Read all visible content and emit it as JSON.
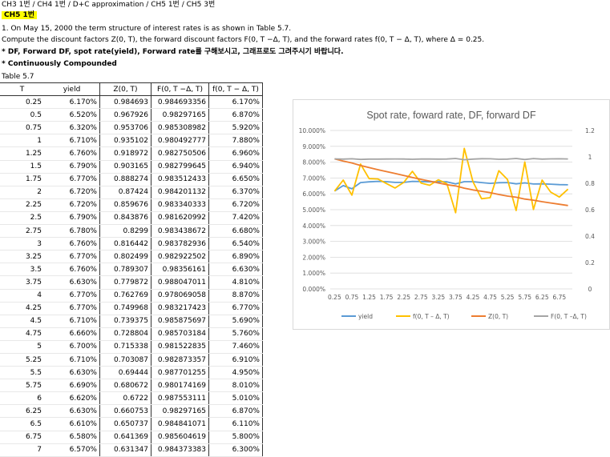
{
  "breadcrumb": "CH3 1번 / CH4 1번 / D+C approximation / CH5 1번 / CH5 3번",
  "section_label": "CH5 1번",
  "problem_line1": "1. On May 15, 2000 the term structure of interest rates is as shown in Table 5.7.",
  "problem_line2": "Compute the discount factors Z(0, T), the forward discount factors F(0, T −Δ, T), and the forward rates f(0, T − Δ, T), where Δ = 0.25.",
  "note1": "* DF, Forward DF, spot rate(yield), Forward rate를 구해보시고, 그래프로도 그려주시기 바랍니다.",
  "note2": "* Continuously Compounded",
  "table_title": "Table 5.7",
  "table": {
    "headers": [
      "T",
      "yield",
      "Z(0, T)",
      "F(0, T −Δ, T)",
      "f(0, T − Δ, T)"
    ],
    "rows": [
      [
        "0.25",
        "6.170%",
        "0.984693",
        "0.984693356",
        "6.170%"
      ],
      [
        "0.5",
        "6.520%",
        "0.967926",
        "0.98297165",
        "6.870%"
      ],
      [
        "0.75",
        "6.320%",
        "0.953706",
        "0.985308982",
        "5.920%"
      ],
      [
        "1",
        "6.710%",
        "0.935102",
        "0.980492777",
        "7.880%"
      ],
      [
        "1.25",
        "6.760%",
        "0.918972",
        "0.982750506",
        "6.960%"
      ],
      [
        "1.5",
        "6.790%",
        "0.903165",
        "0.982799645",
        "6.940%"
      ],
      [
        "1.75",
        "6.770%",
        "0.888274",
        "0.983512433",
        "6.650%"
      ],
      [
        "2",
        "6.720%",
        "0.87424",
        "0.984201132",
        "6.370%"
      ],
      [
        "2.25",
        "6.720%",
        "0.859676",
        "0.983340333",
        "6.720%"
      ],
      [
        "2.5",
        "6.790%",
        "0.843876",
        "0.981620992",
        "7.420%"
      ],
      [
        "2.75",
        "6.780%",
        "0.8299",
        "0.983438672",
        "6.680%"
      ],
      [
        "3",
        "6.760%",
        "0.816442",
        "0.983782936",
        "6.540%"
      ],
      [
        "3.25",
        "6.770%",
        "0.802499",
        "0.982922502",
        "6.890%"
      ],
      [
        "3.5",
        "6.760%",
        "0.789307",
        "0.98356161",
        "6.630%"
      ],
      [
        "3.75",
        "6.630%",
        "0.779872",
        "0.988047011",
        "4.810%"
      ],
      [
        "4",
        "6.770%",
        "0.762769",
        "0.978069058",
        "8.870%"
      ],
      [
        "4.25",
        "6.770%",
        "0.749968",
        "0.983217423",
        "6.770%"
      ],
      [
        "4.5",
        "6.710%",
        "0.739375",
        "0.985875697",
        "5.690%"
      ],
      [
        "4.75",
        "6.660%",
        "0.728804",
        "0.985703184",
        "5.760%"
      ],
      [
        "5",
        "6.700%",
        "0.715338",
        "0.981522835",
        "7.460%"
      ],
      [
        "5.25",
        "6.710%",
        "0.703087",
        "0.982873357",
        "6.910%"
      ],
      [
        "5.5",
        "6.630%",
        "0.69444",
        "0.987701255",
        "4.950%"
      ],
      [
        "5.75",
        "6.690%",
        "0.680672",
        "0.980174169",
        "8.010%"
      ],
      [
        "6",
        "6.620%",
        "0.6722",
        "0.987553111",
        "5.010%"
      ],
      [
        "6.25",
        "6.630%",
        "0.660753",
        "0.98297165",
        "6.870%"
      ],
      [
        "6.5",
        "6.610%",
        "0.650737",
        "0.984841071",
        "6.110%"
      ],
      [
        "6.75",
        "6.580%",
        "0.641369",
        "0.985604619",
        "5.800%"
      ],
      [
        "7",
        "6.570%",
        "0.631347",
        "0.984373383",
        "6.300%"
      ]
    ]
  },
  "chart_data": {
    "type": "line",
    "title": "Spot rate, foward rate, DF, forward DF",
    "categories": [
      "0.25",
      "0.5",
      "0.75",
      "1",
      "1.25",
      "1.5",
      "1.75",
      "2",
      "2.25",
      "2.5",
      "2.75",
      "3",
      "3.25",
      "3.5",
      "3.75",
      "4",
      "4.25",
      "4.5",
      "4.75",
      "5",
      "5.25",
      "5.5",
      "5.75",
      "6",
      "6.25",
      "6.5",
      "6.75",
      "7"
    ],
    "x_tick_labels": [
      "0.25",
      "0.75",
      "1.25",
      "1.75",
      "2.25",
      "2.75",
      "3.25",
      "3.75",
      "4.25",
      "4.75",
      "5.25",
      "5.75",
      "6.25",
      "6.75"
    ],
    "left_axis": {
      "min": 0,
      "max": 0.1,
      "ticks": [
        "0.000%",
        "1.000%",
        "2.000%",
        "3.000%",
        "4.000%",
        "5.000%",
        "6.000%",
        "7.000%",
        "8.000%",
        "9.000%",
        "10.000%"
      ]
    },
    "right_axis": {
      "min": 0,
      "max": 1.2,
      "ticks": [
        "0",
        "0.2",
        "0.4",
        "0.6",
        "0.8",
        "1",
        "1.2"
      ]
    },
    "series": [
      {
        "name": "yield",
        "axis": "left",
        "color": "#5b9bd5",
        "values": [
          0.0617,
          0.0652,
          0.0632,
          0.0671,
          0.0676,
          0.0679,
          0.0677,
          0.0672,
          0.0672,
          0.0679,
          0.0678,
          0.0676,
          0.0677,
          0.0676,
          0.0663,
          0.0677,
          0.0677,
          0.0671,
          0.0666,
          0.067,
          0.0671,
          0.0663,
          0.0669,
          0.0662,
          0.0663,
          0.0661,
          0.0658,
          0.0657
        ]
      },
      {
        "name": "f(0, T – Δ, T)",
        "axis": "left",
        "color": "#ffc000",
        "values": [
          0.0617,
          0.0687,
          0.0592,
          0.0788,
          0.0696,
          0.0694,
          0.0665,
          0.0637,
          0.0672,
          0.0742,
          0.0668,
          0.0654,
          0.0689,
          0.0663,
          0.0481,
          0.0887,
          0.0677,
          0.0569,
          0.0576,
          0.0746,
          0.0691,
          0.0495,
          0.0801,
          0.0501,
          0.0687,
          0.0611,
          0.058,
          0.063
        ]
      },
      {
        "name": "Z(0, T)",
        "axis": "right",
        "color": "#ed7d31",
        "values": [
          0.984693,
          0.967926,
          0.953706,
          0.935102,
          0.918972,
          0.903165,
          0.888274,
          0.87424,
          0.859676,
          0.843876,
          0.8299,
          0.816442,
          0.802499,
          0.789307,
          0.779872,
          0.762769,
          0.749968,
          0.739375,
          0.728804,
          0.715338,
          0.703087,
          0.69444,
          0.680672,
          0.6722,
          0.660753,
          0.650737,
          0.641369,
          0.631347
        ]
      },
      {
        "name": "F(0, T –Δ, T)",
        "axis": "right",
        "color": "#a5a5a5",
        "values": [
          0.984693,
          0.982972,
          0.985309,
          0.980493,
          0.982751,
          0.9828,
          0.983512,
          0.984201,
          0.98334,
          0.981621,
          0.983439,
          0.983783,
          0.982923,
          0.983562,
          0.988047,
          0.978069,
          0.983217,
          0.985876,
          0.985703,
          0.981523,
          0.982873,
          0.987701,
          0.980174,
          0.987553,
          0.982972,
          0.984841,
          0.985605,
          0.984373
        ]
      }
    ],
    "legend_position": "bottom",
    "grid": true
  }
}
